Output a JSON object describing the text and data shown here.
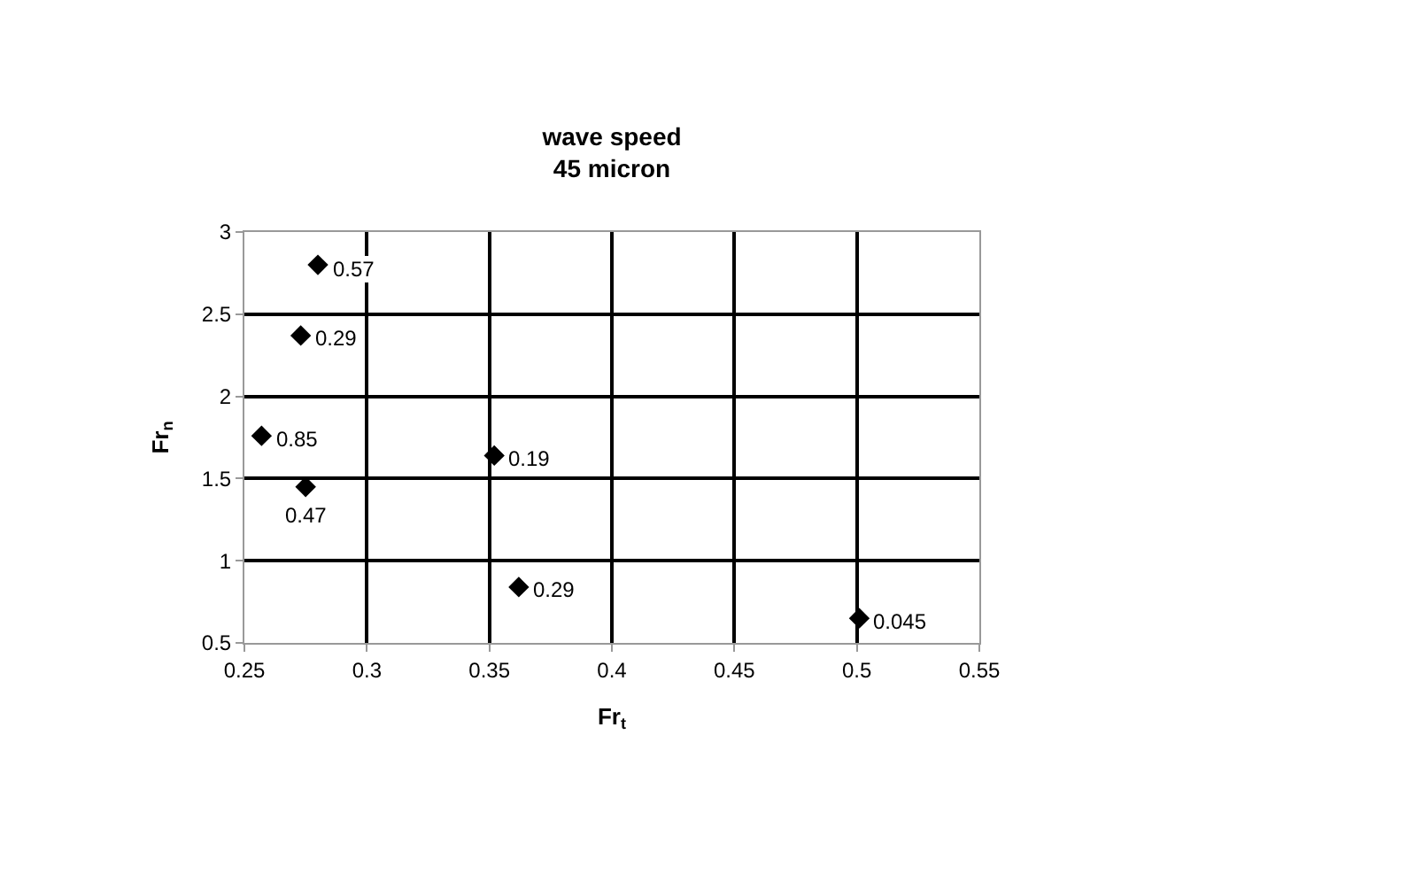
{
  "chart_data": {
    "type": "scatter",
    "title": "wave speed\n45 micron",
    "xlabel": "Fr$_{t}$",
    "ylabel": "Fr$_{n}$",
    "x": [
      0.28,
      0.273,
      0.257,
      0.275,
      0.352,
      0.362,
      0.501
    ],
    "series": [
      {
        "color": "#000000",
        "values": [
          2.8,
          2.37,
          1.76,
          1.45,
          1.64,
          0.84,
          0.65
        ]
      }
    ],
    "annotations": [
      {
        "text": "0.57",
        "x": 0.28,
        "y": 2.8
      },
      {
        "text": "0.29",
        "x": 0.273,
        "y": 2.37
      },
      {
        "text": "0.85",
        "x": 0.257,
        "y": 1.76
      },
      {
        "text": "0.47",
        "x": 0.275,
        "y": 1.45
      },
      {
        "text": "0.19",
        "x": 0.352,
        "y": 1.64
      },
      {
        "text": "0.29",
        "x": 0.362,
        "y": 0.84
      },
      {
        "text": "0.045",
        "x": 0.501,
        "y": 0.65
      }
    ],
    "xlim": [
      0.25,
      0.55
    ],
    "xticks": [
      0.25,
      0.3,
      0.35,
      0.4,
      0.45,
      0.5,
      0.55
    ],
    "ylim": [
      0.5,
      3
    ],
    "yticks": [
      0.5,
      1,
      1.5,
      2,
      2.5,
      3
    ],
    "grid": true,
    "marker": "diamond",
    "legend": false
  }
}
